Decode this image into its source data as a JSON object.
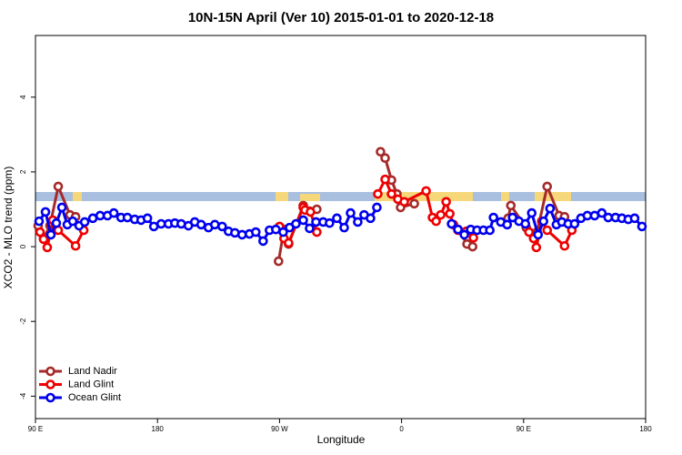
{
  "chart_data": {
    "type": "line",
    "title": "10N-15N April (Ver 10)   2015-01-01 to 2020-12-18",
    "x_label": "Longitude",
    "y_label": "XCO2 - MLO trend (ppm)",
    "xlim": [
      90,
      540
    ],
    "ylim": [
      -4.6,
      5.65
    ],
    "xticks": [
      {
        "value": 90,
        "label": "90 E"
      },
      180,
      {
        "value": 270,
        "label": "90 W"
      },
      {
        "value": 360,
        "label": "0"
      },
      {
        "value": 450,
        "label": "90 E"
      },
      {
        "value": 540,
        "label": "180"
      }
    ],
    "yticks": [
      -4,
      -2,
      0,
      2,
      4
    ],
    "legend": "bottomleft",
    "series": [
      {
        "name": "Land Nadir",
        "color": "#a52a2a",
        "x": [
          92.0,
          96.0,
          100.7,
          106.8,
          115.5,
          119.6,
          null,
          269.3,
          273.3,
          276.7,
          287.5,
          292.2,
          297.5,
          null,
          344.5,
          347.9,
          352.6,
          356.6,
          359.3,
          369.4,
          null,
          401.6,
          408.3,
          412.4,
          null,
          438.6,
          440.6,
          452.0,
          460.0,
          467.4,
          476.2,
          480.2
        ],
        "values": [
          0.56,
          0.22,
          0.56,
          1.61,
          0.85,
          0.8,
          null,
          -0.39,
          0.46,
          0.07,
          1.1,
          0.95,
          1.0,
          null,
          2.54,
          2.37,
          1.78,
          1.41,
          1.05,
          1.15,
          null,
          0.46,
          0.07,
          0.0,
          null,
          0.76,
          1.1,
          0.51,
          0.39,
          1.61,
          0.83,
          0.8
        ]
      },
      {
        "name": "Land Glint",
        "color": "#ee0000",
        "x": [
          93.4,
          96.0,
          98.7,
          102.8,
          106.8,
          119.6,
          125.6,
          null,
          270.0,
          273.3,
          276.7,
          287.5,
          288.8,
          292.8,
          297.5,
          null,
          342.5,
          347.9,
          352.6,
          357.3,
          362.0,
          378.1,
          382.8,
          385.5,
          388.9,
          392.9,
          395.6,
          398.3,
          401.6,
          407.7,
          413.0,
          null,
          454.0,
          457.4,
          459.4,
          463.4,
          467.4,
          480.2,
          485.6
        ],
        "values": [
          0.39,
          0.2,
          -0.02,
          0.71,
          0.44,
          0.02,
          0.44,
          null,
          0.54,
          0.22,
          0.1,
          1.05,
          0.98,
          0.93,
          0.39,
          null,
          1.41,
          1.8,
          1.41,
          1.27,
          1.2,
          1.49,
          0.78,
          0.68,
          0.85,
          1.2,
          0.88,
          0.59,
          0.44,
          0.41,
          0.24,
          null,
          0.39,
          0.22,
          -0.02,
          0.68,
          0.44,
          0.02,
          0.44
        ]
      },
      {
        "name": "Ocean Glint",
        "color": "#0000ee",
        "x": [
          92.7,
          97.4,
          101.4,
          105.4,
          109.5,
          113.5,
          117.5,
          122.2,
          126.3,
          132.3,
          137.7,
          143.1,
          147.8,
          153.1,
          157.8,
          163.2,
          167.9,
          172.6,
          177.3,
          182.7,
          188.1,
          192.8,
          197.5,
          202.8,
          207.5,
          212.2,
          217.6,
          222.3,
          227.7,
          232.4,
          237.1,
          242.4,
          247.8,
          252.5,
          257.9,
          262.6,
          267.3,
          272.7,
          277.4,
          282.1,
          287.5,
          292.2,
          296.9,
          302.2,
          306.9,
          312.3,
          317.7,
          322.4,
          327.7,
          332.4,
          337.1,
          341.8,
          null,
          396.9,
          401.6,
          406.3,
          411.0,
          415.7,
          420.4,
          425.1,
          427.8,
          433.2,
          437.9,
          441.9,
          446.6,
          451.3,
          456.0,
          460.7,
          464.7,
          469.5,
          474.2,
          478.2,
          482.9,
          487.6,
          492.3,
          497.0,
          502.4,
          507.7,
          512.4,
          517.8,
          522.5,
          527.2,
          531.9,
          537.3
        ],
        "values": [
          0.68,
          0.93,
          0.32,
          0.63,
          1.05,
          0.59,
          0.68,
          0.56,
          0.66,
          0.76,
          0.83,
          0.83,
          0.9,
          0.78,
          0.78,
          0.73,
          0.71,
          0.76,
          0.54,
          0.61,
          0.61,
          0.63,
          0.61,
          0.56,
          0.66,
          0.59,
          0.51,
          0.59,
          0.54,
          0.41,
          0.37,
          0.32,
          0.34,
          0.39,
          0.15,
          0.44,
          0.46,
          0.39,
          0.51,
          0.61,
          0.71,
          0.49,
          0.66,
          0.66,
          0.63,
          0.76,
          0.51,
          0.9,
          0.66,
          0.85,
          0.76,
          1.05,
          null,
          0.61,
          0.46,
          0.32,
          0.46,
          0.44,
          0.44,
          0.44,
          0.78,
          0.66,
          0.59,
          0.78,
          0.68,
          0.61,
          0.9,
          0.32,
          0.68,
          1.02,
          0.59,
          0.66,
          0.61,
          0.61,
          0.76,
          0.83,
          0.83,
          0.9,
          0.78,
          0.78,
          0.76,
          0.73,
          0.76,
          0.54
        ]
      }
    ]
  }
}
